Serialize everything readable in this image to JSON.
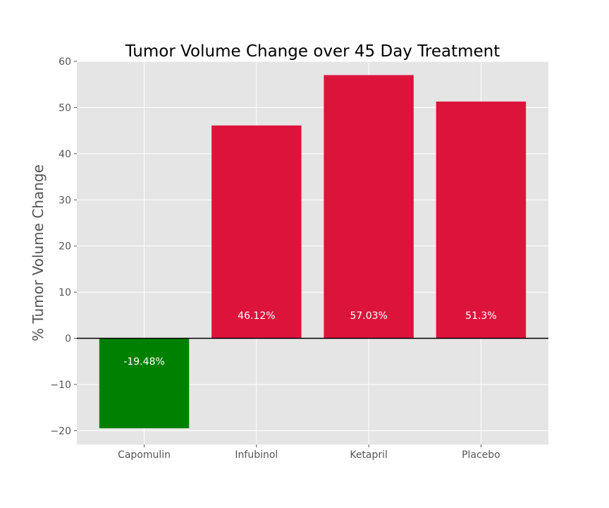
{
  "chart_data": {
    "type": "bar",
    "title": "Tumor Volume Change over 45 Day Treatment",
    "xlabel": "",
    "ylabel": "% Tumor Volume Change",
    "categories": [
      "Capomulin",
      "Infubinol",
      "Ketapril",
      "Placebo"
    ],
    "values": [
      -19.48,
      46.12,
      57.03,
      51.3
    ],
    "value_labels": [
      "-19.48%",
      "46.12%",
      "57.03%",
      "51.3%"
    ],
    "ylim": [
      -23,
      60
    ],
    "yticks": [
      -20,
      -10,
      0,
      10,
      20,
      30,
      40,
      50,
      60
    ],
    "ytick_labels": [
      "−20",
      "−10",
      "0",
      "10",
      "20",
      "30",
      "40",
      "50",
      "60"
    ],
    "grid": true,
    "colors": {
      "positive": "#DC143C",
      "negative": "#008000",
      "background": "#E5E5E5",
      "grid": "#FFFFFF",
      "zero_line": "#000000"
    }
  }
}
